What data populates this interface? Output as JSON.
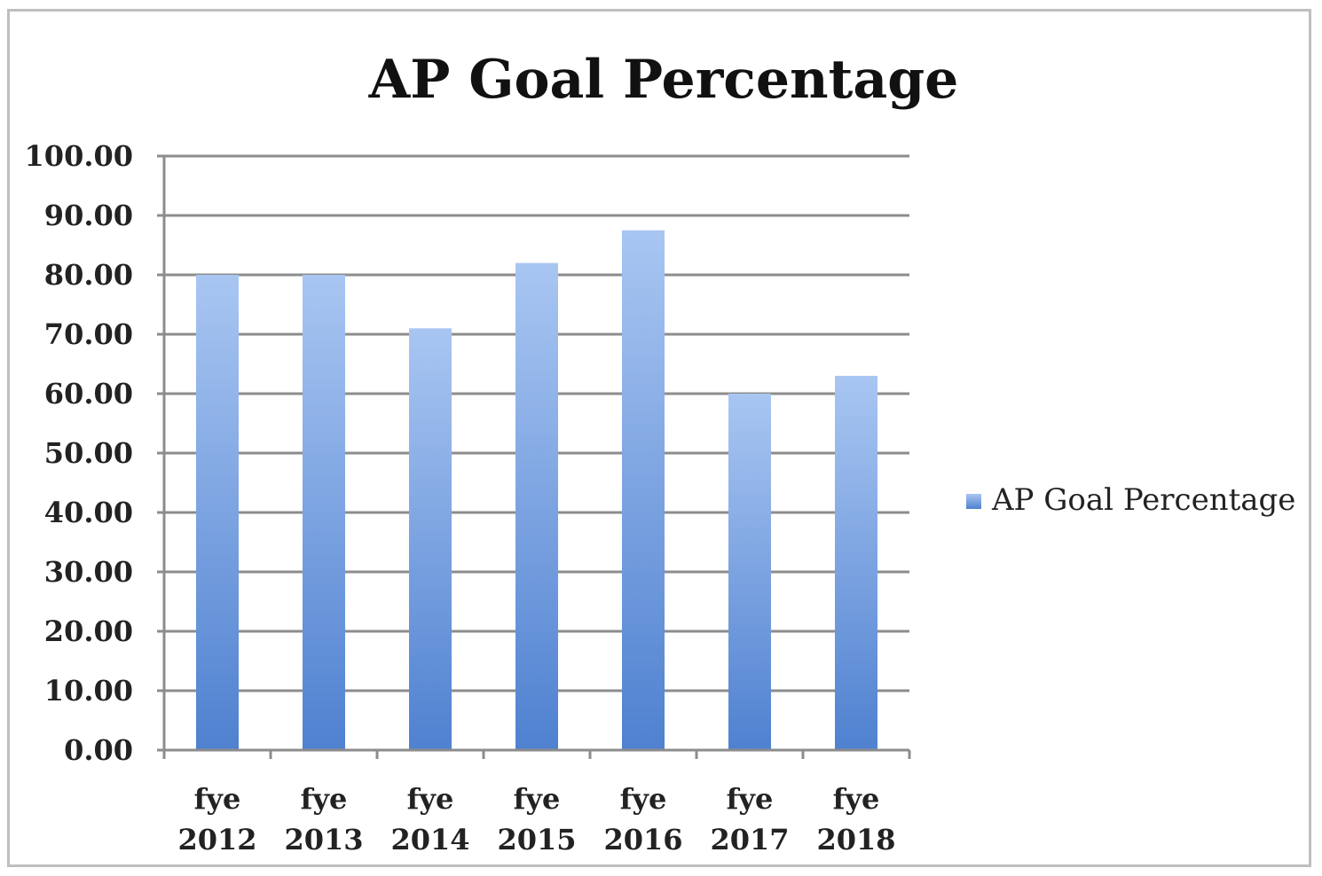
{
  "chart_data": {
    "type": "bar",
    "title": "AP Goal Percentage",
    "categories": [
      [
        "fye",
        "2012"
      ],
      [
        "fye",
        "2013"
      ],
      [
        "fye",
        "2014"
      ],
      [
        "fye",
        "2015"
      ],
      [
        "fye",
        "2016"
      ],
      [
        "fye",
        "2017"
      ],
      [
        "fye",
        "2018"
      ]
    ],
    "series": [
      {
        "name": "AP Goal Percentage",
        "values": [
          80,
          80,
          71,
          82,
          87.5,
          60,
          63
        ]
      }
    ],
    "ylim": [
      0,
      100
    ],
    "yticks": [
      "0.00",
      "10.00",
      "20.00",
      "30.00",
      "40.00",
      "50.00",
      "60.00",
      "70.00",
      "80.00",
      "90.00",
      "100.00"
    ],
    "grid": true,
    "legend_position": "right",
    "colors": {
      "bar_top": "#a9c6f2",
      "bar_bottom": "#4f81d0",
      "grid": "#8c8c8c"
    }
  }
}
